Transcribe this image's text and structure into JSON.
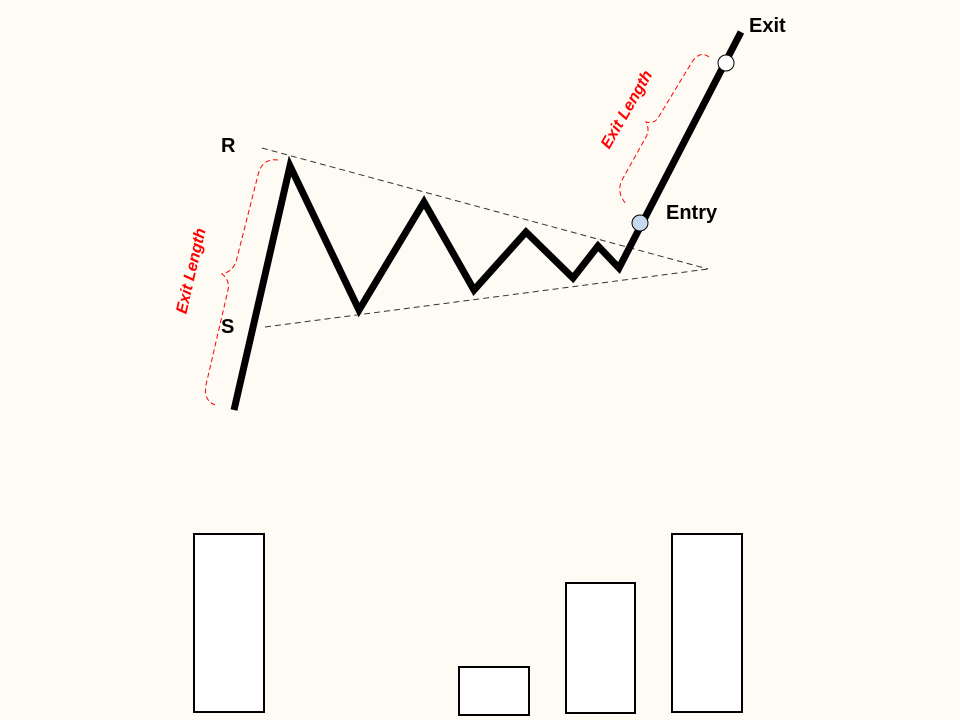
{
  "diagram": {
    "labels": {
      "resistance": "R",
      "support": "S",
      "entry": "Entry",
      "exit": "Exit",
      "exit_length_left": "Exit Length",
      "exit_length_right": "Exit Length"
    },
    "colors": {
      "background": "#fdfbf4",
      "price_line": "#000000",
      "trendline": "#333333",
      "brace": "#ff0000",
      "entry_marker": "#c5d9ee",
      "exit_marker": "#ffffff",
      "volume_bar_fill": "#ffffff",
      "volume_bar_stroke": "#000000"
    }
  }
}
